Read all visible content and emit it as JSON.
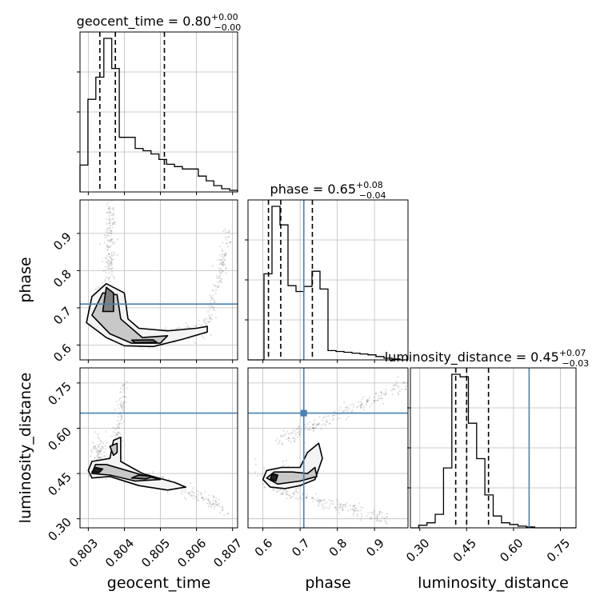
{
  "chart_data": {
    "type": "corner",
    "params": [
      "geocent_time",
      "phase",
      "luminosity_distance"
    ],
    "axis_labels": {
      "geocent_time": "geocent_time",
      "phase": "phase",
      "luminosity_distance": "luminosity_distance"
    },
    "ranges": {
      "geocent_time": [
        0.80277,
        0.80714
      ],
      "phase": [
        0.56,
        0.99
      ],
      "luminosity_distance": [
        0.27,
        0.8
      ]
    },
    "ticks": {
      "geocent_time": [
        0.803,
        0.804,
        0.805,
        0.806,
        0.807
      ],
      "phase": [
        0.6,
        0.7,
        0.8,
        0.9
      ],
      "luminosity_distance": [
        0.3,
        0.45,
        0.6,
        0.75
      ]
    },
    "tick_labels": {
      "geocent_time": [
        "0.803",
        "0.804",
        "0.805",
        "0.806",
        "0.807"
      ],
      "phase": [
        "0.6",
        "0.7",
        "0.8",
        "0.9"
      ],
      "luminosity_distance": [
        "0.30",
        "0.45",
        "0.60",
        "0.75"
      ]
    },
    "titles": {
      "geocent_time": {
        "label": "geocent_time",
        "median": "0.80",
        "plus": "+0.00",
        "minus": "−0.00"
      },
      "phase": {
        "label": "phase",
        "median": "0.65",
        "plus": "+0.08",
        "minus": "−0.04"
      },
      "luminosity_distance": {
        "label": "luminosity_distance",
        "median": "0.45",
        "plus": "+0.07",
        "minus": "−0.03"
      }
    },
    "truths": {
      "geocent_time": null,
      "phase": 0.71,
      "luminosity_distance": 0.65
    },
    "quantiles": {
      "geocent_time": [
        0.80332,
        0.80375,
        0.80511
      ],
      "phase": [
        0.615,
        0.648,
        0.733
      ],
      "luminosity_distance": [
        0.415,
        0.45,
        0.52
      ]
    },
    "histograms": {
      "geocent_time": {
        "edges": [
          0.80277,
          0.80299,
          0.80321,
          0.80343,
          0.80365,
          0.80386,
          0.80408,
          0.8043,
          0.80452,
          0.80474,
          0.80496,
          0.80517,
          0.80539,
          0.80561,
          0.80583,
          0.80605,
          0.80627,
          0.80648,
          0.8067,
          0.80692,
          0.80714
        ],
        "counts": [
          34,
          117,
          145,
          194,
          156,
          69,
          69,
          55,
          52,
          48,
          41,
          35,
          32,
          29,
          29,
          20,
          14,
          8,
          4,
          2
        ]
      },
      "phase": {
        "edges": [
          0.56,
          0.5815,
          0.603,
          0.6245,
          0.646,
          0.6675,
          0.689,
          0.7105,
          0.732,
          0.7535,
          0.775,
          0.7965,
          0.818,
          0.8395,
          0.861,
          0.8825,
          0.904,
          0.9255,
          0.947,
          0.9685,
          0.99
        ],
        "counts": [
          0,
          0,
          102,
          182,
          160,
          88,
          81,
          87,
          105,
          84,
          11,
          10,
          9,
          8,
          7,
          6,
          4,
          2,
          1,
          0
        ]
      },
      "luminosity_distance": {
        "edges": [
          0.27,
          0.2965,
          0.323,
          0.3495,
          0.376,
          0.4025,
          0.429,
          0.4555,
          0.482,
          0.5085,
          0.535,
          0.5615,
          0.588,
          0.6145,
          0.641,
          0.6675,
          0.694,
          0.7205,
          0.747,
          0.7735,
          0.8
        ],
        "counts": [
          0,
          3,
          6,
          16,
          71,
          182,
          179,
          124,
          82,
          39,
          14,
          6,
          4,
          2,
          1,
          0,
          0,
          0,
          0,
          0
        ]
      }
    }
  }
}
